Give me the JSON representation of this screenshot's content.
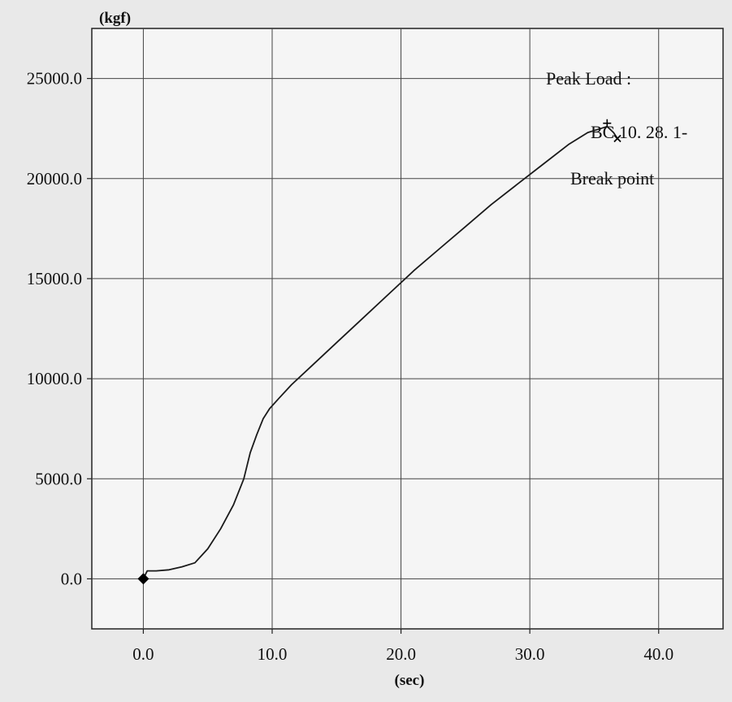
{
  "chart_data": {
    "type": "line",
    "xlabel": "(sec)",
    "ylabel": "(kgf)",
    "xlim": [
      -4,
      45
    ],
    "ylim": [
      -2500,
      27500
    ],
    "x_ticks": [
      0,
      10,
      20,
      30,
      40
    ],
    "x_tick_labels": [
      "0.0",
      "10.0",
      "20.0",
      "30.0",
      "40.0"
    ],
    "y_ticks": [
      0,
      5000,
      10000,
      15000,
      20000,
      25000
    ],
    "y_tick_labels": [
      "0.0",
      "5000.0",
      "10000.0",
      "15000.0",
      "20000.0",
      "25000.0"
    ],
    "grid": true,
    "series": [
      {
        "x": [
          0,
          0.3,
          1,
          2,
          3,
          4,
          5,
          6,
          7,
          7.8,
          8.3,
          8.8,
          9.3,
          9.8,
          10.5,
          11.5,
          13,
          15,
          17,
          19,
          21,
          23,
          25,
          27,
          29,
          31,
          33,
          34.5,
          35.5,
          36,
          36.5,
          36.8
        ],
        "y": [
          0,
          400,
          400,
          450,
          600,
          800,
          1500,
          2500,
          3700,
          5000,
          6300,
          7200,
          8000,
          8500,
          9000,
          9700,
          10600,
          11800,
          13000,
          14200,
          15400,
          16500,
          17600,
          18700,
          19700,
          20700,
          21700,
          22300,
          22500,
          22600,
          22300,
          22000
        ],
        "color": "#1a1a1a"
      }
    ],
    "points": [
      {
        "name": "origin",
        "x": 0,
        "y": 0
      }
    ],
    "annotations": {
      "peak_load": "Peak Load :",
      "sample_id": "BC 10. 28. 1-",
      "break_point": "Break point"
    }
  }
}
